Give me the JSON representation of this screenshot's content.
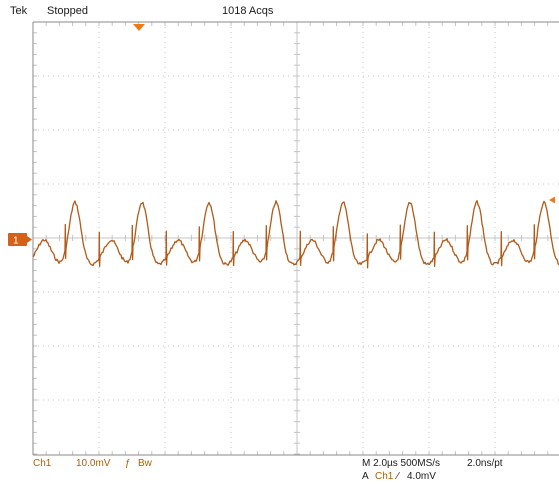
{
  "header": {
    "brand": "Tek",
    "acq_state": "Stopped",
    "acq_count": "1018 Acqs"
  },
  "channel_marker": {
    "label": "1"
  },
  "footer": {
    "channel": "Ch1",
    "vertical_scale": "10.0mV",
    "bandwidth_symbol": "Bw",
    "timebase": "M 2.0µs 500MS/s",
    "record": "2.0ns/pt",
    "trigger_prefix": "A",
    "trigger_channel": "Ch1",
    "trigger_level": "4.0mV"
  },
  "colors": {
    "trace": "#b25a18",
    "marker": "#d4601a",
    "trigger": "#f07a12",
    "grid": "#c4c4c4",
    "frame": "#8a8a8a"
  },
  "icons": {
    "trigger_position": "trigger-position-arrow-icon",
    "trigger_slope": "rising-edge-icon",
    "bandwidth_limit": "bandwidth-limit-icon",
    "trigger_level": "trigger-level-arrow-icon"
  }
}
